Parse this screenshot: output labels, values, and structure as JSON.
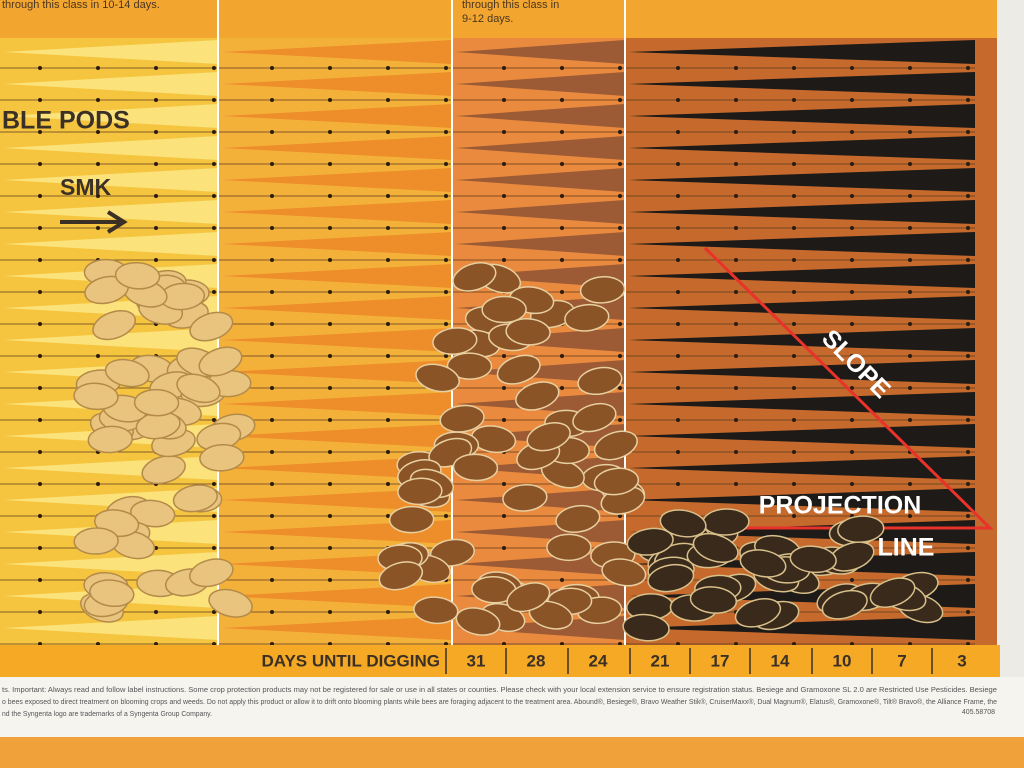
{
  "header": {
    "note_left": "through this class in 10-14 days.",
    "note_mid_1": "through this class in",
    "note_mid_2": "9-12 days."
  },
  "board": {
    "pods_label": "BLE PODS",
    "smk_label": "SMK",
    "slope_label": "SLOPE",
    "projection_label_1": "PROJECTION",
    "projection_label_2": "LINE"
  },
  "scale": {
    "title": "DAYS UNTIL DIGGING",
    "days": [
      31,
      28,
      24,
      21,
      17,
      14,
      10,
      7,
      3
    ]
  },
  "footer": {
    "lines": [
      "ts. Important: Always read and follow label instructions. Some crop protection products may not be registered for sale or use in all states or counties. Please check with your local extension service to ensure registration status. Besiege and Gramoxone SL 2.0 are Restricted Use Pesticides. Besiege",
      "o bees exposed to direct treatment on blooming crops and weeds. Do not apply this product or allow it to drift onto blooming plants while bees are foraging adjacent to the treatment area. Abound®, Besiege®, Bravo Weather Stik®, CruiserMaxx®, Dual Magnum®, Elatus®, Gramoxone®, Tilt® Bravo®, the Alliance Frame, the",
      "nd the Syngenta logo are trademarks of a Syngenta Group Company."
    ],
    "code": "405.58708"
  }
}
